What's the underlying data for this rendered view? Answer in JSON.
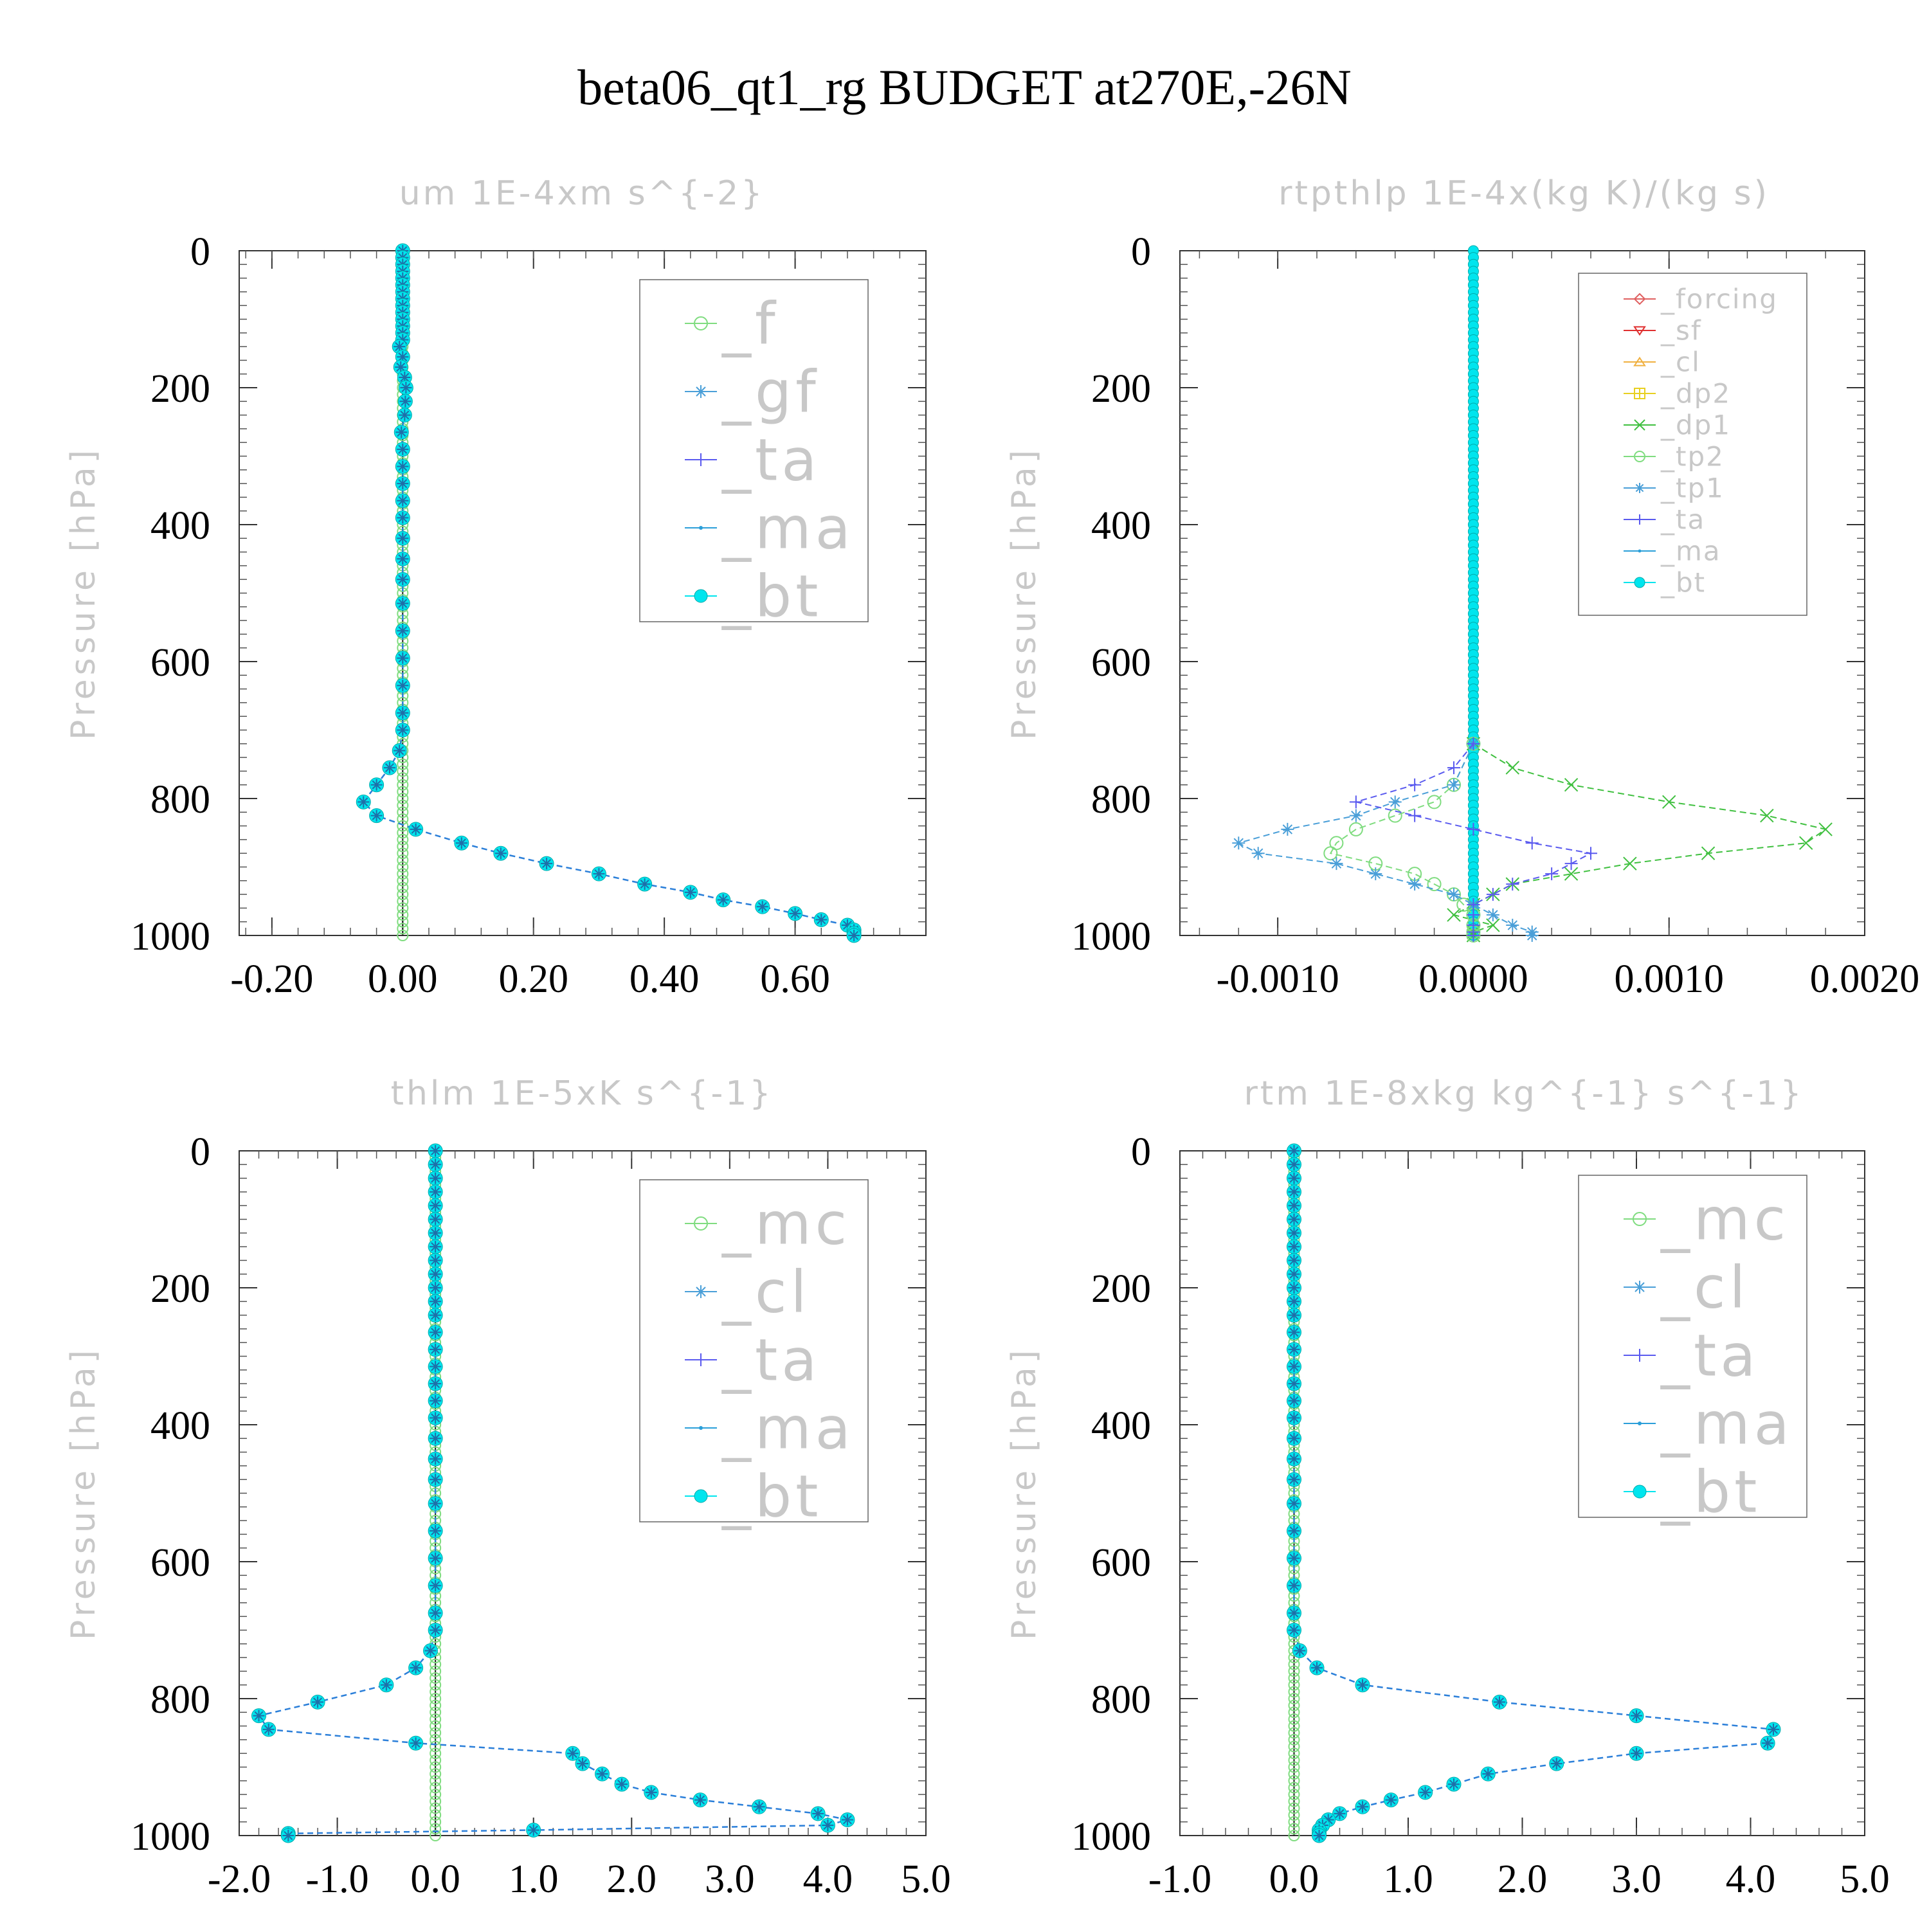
{
  "figure": {
    "title": "beta06_qt1_rg  BUDGET at270E,-26N"
  },
  "chart_data": [
    {
      "type": "line",
      "title": "um  1E-4xm s^{-2}",
      "ylabel": "Pressure [hPa]",
      "xlabel": "",
      "xlim": [
        -0.25,
        0.8
      ],
      "ylim": [
        1000,
        0
      ],
      "x_ticks": [
        -0.2,
        0.0,
        0.2,
        0.4,
        0.6
      ],
      "x_tick_labels": [
        "-0.20",
        "0.00",
        "0.20",
        "0.40",
        "0.60"
      ],
      "y_ticks": [
        0,
        200,
        400,
        600,
        800,
        1000
      ],
      "y_tick_labels": [
        "0",
        "200",
        "400",
        "600",
        "800",
        "1000"
      ],
      "legend_position": "top-right",
      "legend_font_size": "large",
      "series": [
        {
          "name": "_f",
          "color": "#7fdc7f",
          "marker": "circle-open"
        },
        {
          "name": "_gf",
          "color": "#4a9fd8",
          "marker": "asterisk"
        },
        {
          "name": "_ta",
          "color": "#5a5aef",
          "marker": "plus"
        },
        {
          "name": "_ma",
          "color": "#2b9fd9",
          "marker": "dot"
        },
        {
          "name": "_bt",
          "color": "#00e5ee",
          "marker": "filled-circle"
        }
      ],
      "profile_series": "_bt",
      "zero_series": "_f",
      "pressure": [
        0,
        10,
        20,
        30,
        40,
        50,
        60,
        70,
        80,
        90,
        100,
        110,
        120,
        130,
        140,
        155,
        170,
        185,
        200,
        220,
        240,
        265,
        290,
        315,
        340,
        365,
        390,
        420,
        450,
        480,
        515,
        555,
        595,
        635,
        675,
        700,
        730,
        755,
        780,
        805,
        825,
        845,
        865,
        880,
        895,
        910,
        925,
        937,
        948,
        958,
        968,
        977,
        985,
        992,
        997,
        1000
      ],
      "values": [
        0,
        0,
        0,
        0,
        0,
        0,
        0,
        0,
        0,
        0,
        0,
        0,
        0,
        0,
        -0.005,
        0,
        -0.003,
        0.003,
        0.005,
        0.004,
        0.003,
        -0.002,
        0,
        0,
        0,
        0,
        0,
        0,
        0,
        0,
        0,
        0,
        0,
        0,
        0,
        0,
        -0.005,
        -0.02,
        -0.04,
        -0.06,
        -0.04,
        0.02,
        0.09,
        0.15,
        0.22,
        0.3,
        0.37,
        0.44,
        0.49,
        0.55,
        0.6,
        0.64,
        0.68,
        0.69,
        0.69,
        0.69
      ]
    },
    {
      "type": "line",
      "title": "rtpthlp  1E-4x(kg K)/(kg s)",
      "ylabel": "Pressure [hPa]",
      "xlabel": "",
      "xlim": [
        -0.0015,
        0.002
      ],
      "ylim": [
        1000,
        0
      ],
      "x_ticks": [
        -0.001,
        0.0,
        0.001,
        0.002
      ],
      "x_tick_labels": [
        "-0.0010",
        "0.0000",
        "0.0010",
        "0.0020"
      ],
      "y_ticks": [
        0,
        200,
        400,
        600,
        800,
        1000
      ],
      "y_tick_labels": [
        "0",
        "200",
        "400",
        "600",
        "800",
        "1000"
      ],
      "legend_position": "top-right",
      "legend_font_size": "small",
      "series": [
        {
          "name": "_forcing",
          "color": "#e06060",
          "marker": "diamond-open"
        },
        {
          "name": "_sf",
          "color": "#e03030",
          "marker": "triangle-down"
        },
        {
          "name": "_cl",
          "color": "#f0b040",
          "marker": "triangle-up"
        },
        {
          "name": "_dp2",
          "color": "#e8d020",
          "marker": "square-plus"
        },
        {
          "name": "_dp1",
          "color": "#40c040",
          "marker": "cross",
          "pressure": [
            720,
            755,
            780,
            805,
            825,
            845,
            865,
            880,
            895,
            910,
            925,
            940,
            955,
            970,
            985,
            995,
            1000
          ],
          "values": [
            0,
            0.0002,
            0.0005,
            0.001,
            0.0015,
            0.0018,
            0.0017,
            0.0012,
            0.0008,
            0.0005,
            0.0002,
            0.0001,
            0,
            -0.0001,
            0.0001,
            0,
            0
          ]
        },
        {
          "name": "_tp2",
          "color": "#7fdc7f",
          "marker": "circle-open",
          "pressure": [
            720,
            780,
            805,
            825,
            845,
            865,
            880,
            895,
            910,
            925,
            940,
            955,
            970,
            985,
            995,
            1000
          ],
          "values": [
            0,
            -0.0001,
            -0.0002,
            -0.0004,
            -0.0006,
            -0.0007,
            -0.00073,
            -0.0005,
            -0.0003,
            -0.0002,
            -0.0001,
            -5e-05,
            0,
            0,
            0,
            0
          ]
        },
        {
          "name": "_tp1",
          "color": "#4a9fd8",
          "marker": "asterisk",
          "pressure": [
            720,
            780,
            805,
            825,
            845,
            865,
            880,
            895,
            910,
            925,
            940,
            955,
            970,
            985,
            995,
            1000
          ],
          "values": [
            0,
            -0.0001,
            -0.0004,
            -0.0006,
            -0.00095,
            -0.0012,
            -0.0011,
            -0.0007,
            -0.0005,
            -0.0003,
            -0.0001,
            0,
            0.0001,
            0.0002,
            0.0003,
            0.0003
          ]
        },
        {
          "name": "_ta",
          "color": "#5a5aef",
          "marker": "plus",
          "pressure": [
            720,
            755,
            780,
            805,
            825,
            845,
            865,
            880,
            895,
            910,
            925,
            940,
            955,
            970,
            985,
            995,
            1000
          ],
          "values": [
            0,
            -0.0001,
            -0.0003,
            -0.0006,
            -0.0003,
            0,
            0.0003,
            0.0006,
            0.0005,
            0.0004,
            0.0002,
            0.0001,
            0,
            0,
            0,
            0,
            0
          ]
        },
        {
          "name": "_ma",
          "color": "#2b9fd9",
          "marker": "dot"
        },
        {
          "name": "_bt",
          "color": "#00e5ee",
          "marker": "filled-circle"
        }
      ],
      "zero_series": "_bt"
    },
    {
      "type": "line",
      "title": "thlm  1E-5xK s^{-1}",
      "ylabel": "Pressure [hPa]",
      "xlabel": "",
      "xlim": [
        -2.0,
        5.0
      ],
      "ylim": [
        1000,
        0
      ],
      "x_ticks": [
        -2,
        -1,
        0,
        1,
        2,
        3,
        4,
        5
      ],
      "x_tick_labels": [
        "-2.0",
        "-1.0",
        "0.0",
        "1.0",
        "2.0",
        "3.0",
        "4.0",
        "5.0"
      ],
      "y_ticks": [
        0,
        200,
        400,
        600,
        800,
        1000
      ],
      "y_tick_labels": [
        "0",
        "200",
        "400",
        "600",
        "800",
        "1000"
      ],
      "legend_position": "top-right",
      "legend_font_size": "large",
      "series": [
        {
          "name": "_mc",
          "color": "#7fdc7f",
          "marker": "circle-open"
        },
        {
          "name": "_cl",
          "color": "#4a9fd8",
          "marker": "asterisk"
        },
        {
          "name": "_ta",
          "color": "#5a5aef",
          "marker": "plus"
        },
        {
          "name": "_ma",
          "color": "#2b9fd9",
          "marker": "dot"
        },
        {
          "name": "_bt",
          "color": "#00e5ee",
          "marker": "filled-circle"
        }
      ],
      "profile_series": "_bt",
      "zero_series": "_mc",
      "pressure": [
        0,
        20,
        40,
        60,
        80,
        100,
        120,
        140,
        160,
        180,
        200,
        220,
        240,
        265,
        290,
        315,
        340,
        365,
        390,
        420,
        450,
        480,
        515,
        555,
        595,
        635,
        675,
        700,
        730,
        755,
        780,
        805,
        825,
        845,
        865,
        880,
        895,
        910,
        925,
        937,
        948,
        958,
        968,
        977,
        985,
        992,
        997,
        1000
      ],
      "values": [
        0,
        0,
        0,
        0,
        0,
        0,
        0,
        0,
        0,
        0,
        0,
        0,
        0,
        0,
        0,
        0,
        0,
        0,
        0,
        0,
        0,
        0,
        0,
        0,
        0,
        0,
        0,
        0,
        -0.05,
        -0.2,
        -0.5,
        -1.2,
        -1.8,
        -1.7,
        -0.2,
        1.4,
        1.5,
        1.7,
        1.9,
        2.2,
        2.7,
        3.3,
        3.9,
        4.2,
        4.0,
        1.0,
        -1.5,
        -1.5
      ]
    },
    {
      "type": "line",
      "title": "rtm  1E-8xkg kg^{-1} s^{-1}",
      "ylabel": "Pressure [hPa]",
      "xlabel": "",
      "xlim": [
        -1.0,
        5.0
      ],
      "ylim": [
        1000,
        0
      ],
      "x_ticks": [
        -1,
        0,
        1,
        2,
        3,
        4,
        5
      ],
      "x_tick_labels": [
        "-1.0",
        "0.0",
        "1.0",
        "2.0",
        "3.0",
        "4.0",
        "5.0"
      ],
      "y_ticks": [
        0,
        200,
        400,
        600,
        800,
        1000
      ],
      "y_tick_labels": [
        "0",
        "200",
        "400",
        "600",
        "800",
        "1000"
      ],
      "legend_position": "top-right",
      "legend_font_size": "large",
      "series": [
        {
          "name": "_mc",
          "color": "#7fdc7f",
          "marker": "circle-open"
        },
        {
          "name": "_cl",
          "color": "#4a9fd8",
          "marker": "asterisk"
        },
        {
          "name": "_ta",
          "color": "#5a5aef",
          "marker": "plus"
        },
        {
          "name": "_ma",
          "color": "#2b9fd9",
          "marker": "dot"
        },
        {
          "name": "_bt",
          "color": "#00e5ee",
          "marker": "filled-circle"
        }
      ],
      "profile_series": "_bt",
      "zero_series": "_mc",
      "pressure": [
        0,
        20,
        40,
        60,
        80,
        100,
        120,
        140,
        160,
        180,
        200,
        220,
        240,
        265,
        290,
        315,
        340,
        365,
        390,
        420,
        450,
        480,
        515,
        555,
        595,
        635,
        675,
        700,
        730,
        755,
        780,
        805,
        825,
        845,
        865,
        880,
        895,
        910,
        925,
        937,
        948,
        958,
        968,
        977,
        985,
        992,
        997,
        1000
      ],
      "values": [
        0,
        0,
        0,
        0,
        0,
        0,
        0,
        0,
        0,
        0,
        0,
        0,
        0,
        0,
        0,
        0,
        0,
        0,
        0,
        0,
        0,
        0,
        0,
        0,
        0,
        0,
        0,
        0,
        0.05,
        0.2,
        0.6,
        1.8,
        3.0,
        4.2,
        4.15,
        3.0,
        2.3,
        1.7,
        1.4,
        1.15,
        0.85,
        0.6,
        0.4,
        0.3,
        0.25,
        0.22,
        0.22,
        0.22
      ]
    }
  ]
}
